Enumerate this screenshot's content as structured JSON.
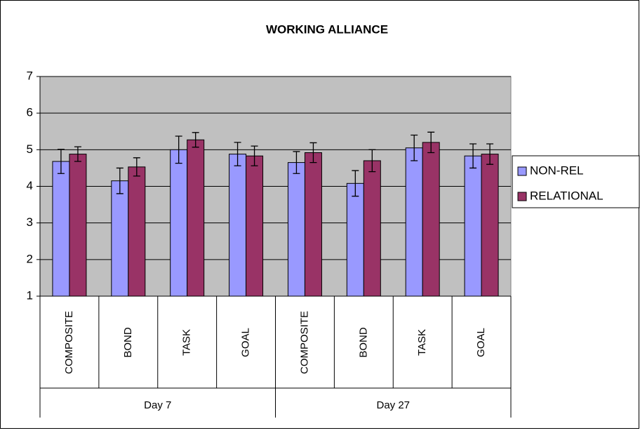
{
  "chart_data": {
    "type": "bar",
    "title": "WORKING ALLIANCE",
    "categories": [
      "COMPOSITE",
      "BOND",
      "TASK",
      "GOAL",
      "COMPOSITE",
      "BOND",
      "TASK",
      "GOAL"
    ],
    "groups": [
      "Day 7",
      "Day 27"
    ],
    "series": [
      {
        "name": "NON-REL",
        "color": "#9999ff",
        "values": [
          4.68,
          4.15,
          5.0,
          4.88,
          4.65,
          4.08,
          5.05,
          4.83
        ],
        "errors": [
          0.33,
          0.35,
          0.37,
          0.32,
          0.3,
          0.35,
          0.35,
          0.33
        ]
      },
      {
        "name": "RELATIONAL",
        "color": "#993366",
        "values": [
          4.88,
          4.53,
          5.27,
          4.83,
          4.92,
          4.7,
          5.2,
          4.88
        ],
        "errors": [
          0.2,
          0.25,
          0.2,
          0.27,
          0.27,
          0.3,
          0.28,
          0.28
        ]
      }
    ],
    "ylim": [
      1,
      7
    ],
    "yticks": [
      1,
      2,
      3,
      4,
      5,
      6,
      7
    ],
    "grid": true,
    "legend": "right",
    "plot_background": "#c0c0c0"
  }
}
